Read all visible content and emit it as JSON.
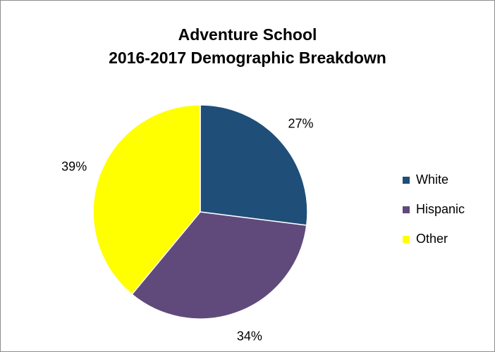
{
  "chart_data": {
    "type": "pie",
    "title_lines": [
      "Adventure School",
      "2016-2017 Demographic Breakdown"
    ],
    "categories": [
      "White",
      "Hispanic",
      "Other"
    ],
    "values": [
      27,
      34,
      39
    ],
    "value_labels": [
      "27%",
      "34%",
      "39%"
    ],
    "colors": [
      "#1f4e79",
      "#604a7b",
      "#ffff00"
    ],
    "legend_position": "right",
    "start_angle": "12 o'clock",
    "direction": "clockwise"
  }
}
